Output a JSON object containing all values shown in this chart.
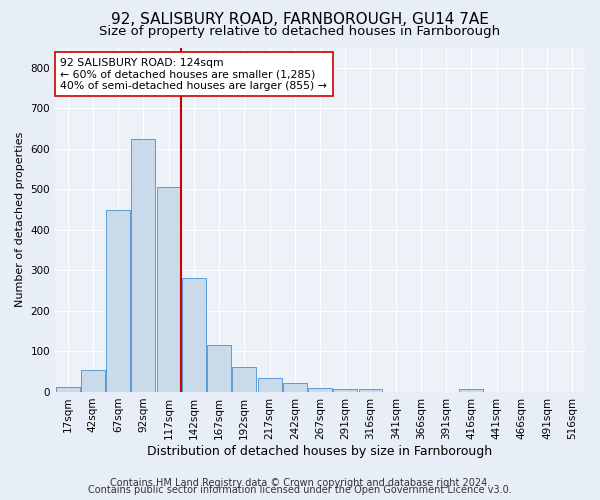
{
  "title1": "92, SALISBURY ROAD, FARNBOROUGH, GU14 7AE",
  "title2": "Size of property relative to detached houses in Farnborough",
  "xlabel": "Distribution of detached houses by size in Farnborough",
  "ylabel": "Number of detached properties",
  "bar_labels": [
    "17sqm",
    "42sqm",
    "67sqm",
    "92sqm",
    "117sqm",
    "142sqm",
    "167sqm",
    "192sqm",
    "217sqm",
    "242sqm",
    "267sqm",
    "291sqm",
    "316sqm",
    "341sqm",
    "366sqm",
    "391sqm",
    "416sqm",
    "441sqm",
    "466sqm",
    "491sqm",
    "516sqm"
  ],
  "bar_values": [
    12,
    55,
    450,
    625,
    505,
    280,
    115,
    62,
    35,
    22,
    10,
    8,
    8,
    0,
    0,
    0,
    8,
    0,
    0,
    0,
    0
  ],
  "bar_color": "#c9daea",
  "bar_edge_color": "#5b9bd5",
  "vline_color": "#cc0000",
  "vline_x_index": 4.5,
  "ylim": [
    0,
    850
  ],
  "yticks": [
    0,
    100,
    200,
    300,
    400,
    500,
    600,
    700,
    800
  ],
  "annotation_title": "92 SALISBURY ROAD: 124sqm",
  "annotation_line1": "← 60% of detached houses are smaller (1,285)",
  "annotation_line2": "40% of semi-detached houses are larger (855) →",
  "footer1": "Contains HM Land Registry data © Crown copyright and database right 2024.",
  "footer2": "Contains public sector information licensed under the Open Government Licence v3.0.",
  "bg_color": "#e8eef7",
  "plot_bg_color": "#edf1f8",
  "grid_color": "#ffffff",
  "title1_fontsize": 11,
  "title2_fontsize": 9.5,
  "xlabel_fontsize": 9,
  "ylabel_fontsize": 8,
  "tick_fontsize": 7.5,
  "footer_fontsize": 7,
  "annotation_fontsize": 7.8
}
